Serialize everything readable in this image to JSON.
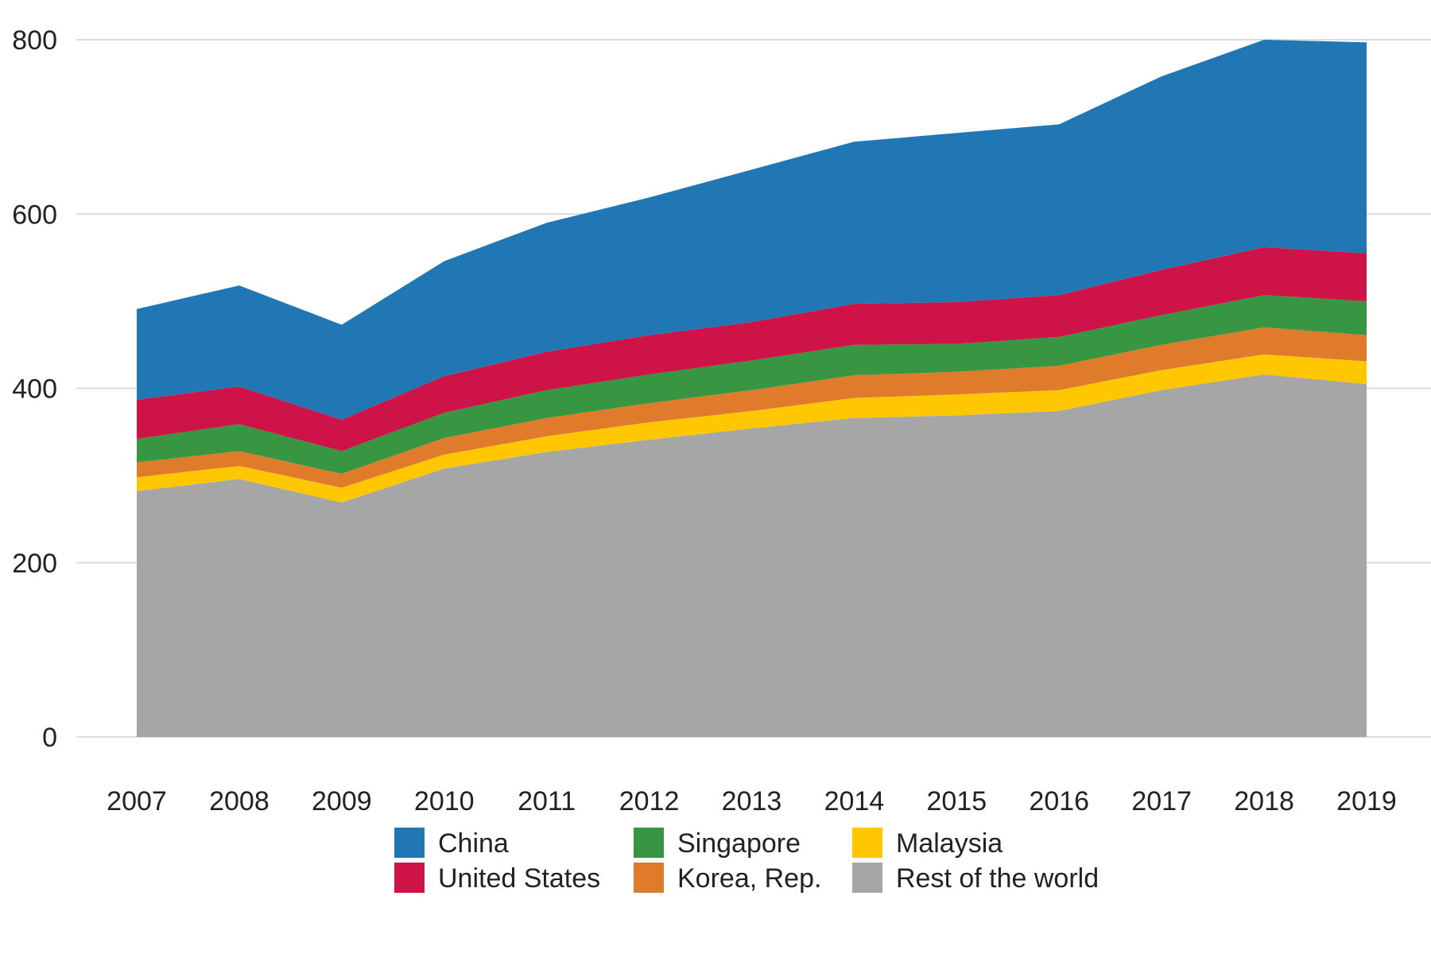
{
  "chart_data": {
    "type": "area",
    "stacked": true,
    "title": "",
    "xlabel": "",
    "ylabel": "",
    "x": [
      2007,
      2008,
      2009,
      2010,
      2011,
      2012,
      2013,
      2014,
      2015,
      2016,
      2017,
      2018,
      2019
    ],
    "ylim": [
      0,
      800
    ],
    "yticks": [
      0,
      200,
      400,
      600,
      800
    ],
    "grid": true,
    "legend_position": "bottom",
    "series": [
      {
        "name": "Rest of the world",
        "color": "#a6a6a6",
        "values": [
          282,
          296,
          269,
          308,
          327,
          341,
          354,
          366,
          369,
          374,
          398,
          416,
          405
        ]
      },
      {
        "name": "Malaysia",
        "color": "#ffc700",
        "values": [
          16,
          15,
          17,
          16,
          18,
          20,
          20,
          23,
          24,
          24,
          23,
          23,
          26
        ]
      },
      {
        "name": "Korea, Rep.",
        "color": "#e07b2c",
        "values": [
          17,
          17,
          16,
          19,
          21,
          22,
          24,
          26,
          26,
          28,
          29,
          31,
          30
        ]
      },
      {
        "name": "Singapore",
        "color": "#389541",
        "values": [
          27,
          31,
          26,
          29,
          32,
          33,
          34,
          35,
          32,
          33,
          34,
          37,
          39
        ]
      },
      {
        "name": "United States",
        "color": "#cd1348",
        "values": [
          45,
          43,
          36,
          42,
          44,
          45,
          44,
          47,
          48,
          48,
          52,
          55,
          55
        ]
      },
      {
        "name": "China",
        "color": "#2176b4",
        "values": [
          104,
          116,
          109,
          132,
          148,
          158,
          175,
          186,
          194,
          196,
          222,
          238,
          242
        ]
      }
    ],
    "legend_order": [
      "China",
      "United States",
      "Singapore",
      "Korea, Rep.",
      "Malaysia",
      "Rest of the world"
    ]
  }
}
